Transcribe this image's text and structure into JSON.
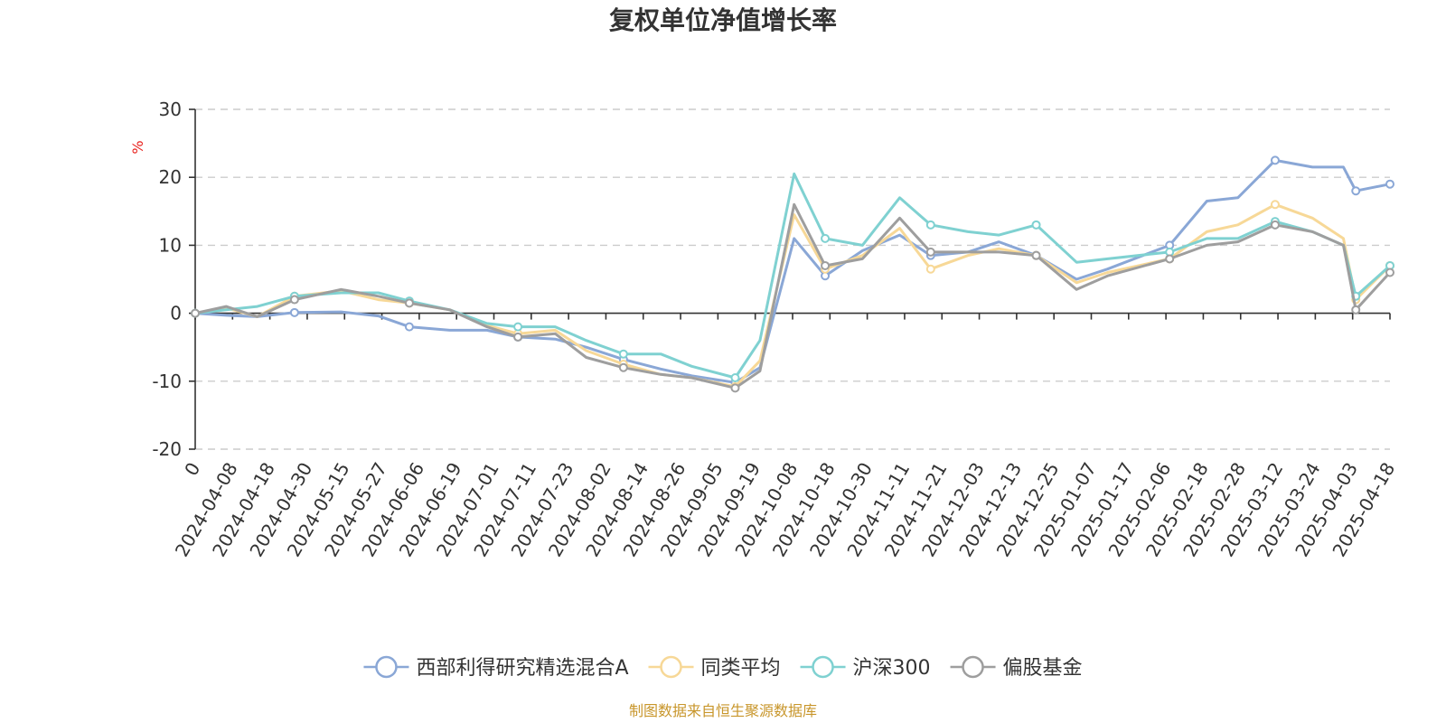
{
  "chart_data": {
    "type": "line",
    "title": "复权单位净值增长率",
    "ylabel": "%",
    "ylim": [
      -20,
      30
    ],
    "y_ticks": [
      -20,
      -10,
      0,
      10,
      20,
      30
    ],
    "grid": true,
    "legend_placement": "bottom",
    "x_ticks": [
      "0",
      "2024-04-08",
      "2024-04-18",
      "2024-04-30",
      "2024-05-15",
      "2024-05-27",
      "2024-06-06",
      "2024-06-19",
      "2024-07-01",
      "2024-07-11",
      "2024-07-23",
      "2024-08-02",
      "2024-08-14",
      "2024-08-26",
      "2024-09-05",
      "2024-09-19",
      "2024-10-08",
      "2024-10-18",
      "2024-10-30",
      "2024-11-11",
      "2024-11-21",
      "2024-12-03",
      "2024-12-13",
      "2024-12-25",
      "2025-01-07",
      "2025-01-17",
      "2025-02-06",
      "2025-02-18",
      "2025-02-28",
      "2025-03-12",
      "2025-03-24",
      "2025-04-03",
      "2025-04-18"
    ],
    "x_range": [
      "2024-03-29",
      "2025-04-18"
    ],
    "series": [
      {
        "name": "西部利得研究精选混合A",
        "color": "#8aa7d6",
        "points": [
          [
            "2024-03-29",
            0
          ],
          [
            "2024-04-08",
            -0.3
          ],
          [
            "2024-04-18",
            -0.5
          ],
          [
            "2024-04-30",
            0.1
          ],
          [
            "2024-05-15",
            0.2
          ],
          [
            "2024-05-27",
            -0.4
          ],
          [
            "2024-06-06",
            -2.0
          ],
          [
            "2024-06-19",
            -2.5
          ],
          [
            "2024-07-01",
            -2.5
          ],
          [
            "2024-07-11",
            -3.5
          ],
          [
            "2024-07-23",
            -3.8
          ],
          [
            "2024-08-02",
            -5.0
          ],
          [
            "2024-08-14",
            -6.8
          ],
          [
            "2024-08-26",
            -8.2
          ],
          [
            "2024-09-05",
            -9.2
          ],
          [
            "2024-09-19",
            -10.2
          ],
          [
            "2024-09-27",
            -8.0
          ],
          [
            "2024-10-08",
            11.0
          ],
          [
            "2024-10-18",
            5.5
          ],
          [
            "2024-10-30",
            9.2
          ],
          [
            "2024-11-11",
            11.5
          ],
          [
            "2024-11-21",
            8.5
          ],
          [
            "2024-12-03",
            9.0
          ],
          [
            "2024-12-13",
            10.5
          ],
          [
            "2024-12-25",
            8.5
          ],
          [
            "2025-01-07",
            5.0
          ],
          [
            "2025-01-17",
            6.5
          ],
          [
            "2025-02-06",
            10.0
          ],
          [
            "2025-02-18",
            16.5
          ],
          [
            "2025-02-28",
            17.0
          ],
          [
            "2025-03-12",
            22.5
          ],
          [
            "2025-03-24",
            21.5
          ],
          [
            "2025-04-03",
            21.5
          ],
          [
            "2025-04-07",
            18.0
          ],
          [
            "2025-04-18",
            19.0
          ]
        ]
      },
      {
        "name": "同类平均",
        "color": "#f7d897",
        "points": [
          [
            "2024-03-29",
            0
          ],
          [
            "2024-04-08",
            0.8
          ],
          [
            "2024-04-18",
            -0.5
          ],
          [
            "2024-04-30",
            2.5
          ],
          [
            "2024-05-15",
            3.3
          ],
          [
            "2024-05-27",
            2.0
          ],
          [
            "2024-06-06",
            1.5
          ],
          [
            "2024-06-19",
            0.5
          ],
          [
            "2024-07-01",
            -1.8
          ],
          [
            "2024-07-11",
            -3.0
          ],
          [
            "2024-07-23",
            -2.5
          ],
          [
            "2024-08-02",
            -5.5
          ],
          [
            "2024-08-14",
            -7.5
          ],
          [
            "2024-08-26",
            -9.0
          ],
          [
            "2024-09-05",
            -9.5
          ],
          [
            "2024-09-19",
            -10.8
          ],
          [
            "2024-09-27",
            -7.0
          ],
          [
            "2024-10-08",
            14.5
          ],
          [
            "2024-10-18",
            6.5
          ],
          [
            "2024-10-30",
            8.5
          ],
          [
            "2024-11-11",
            12.5
          ],
          [
            "2024-11-21",
            6.5
          ],
          [
            "2024-12-03",
            8.5
          ],
          [
            "2024-12-13",
            9.5
          ],
          [
            "2024-12-25",
            8.5
          ],
          [
            "2025-01-07",
            4.5
          ],
          [
            "2025-01-17",
            6.0
          ],
          [
            "2025-02-06",
            8.0
          ],
          [
            "2025-02-18",
            12.0
          ],
          [
            "2025-02-28",
            13.0
          ],
          [
            "2025-03-12",
            16.0
          ],
          [
            "2025-03-24",
            14.0
          ],
          [
            "2025-04-03",
            11.0
          ],
          [
            "2025-04-07",
            2.0
          ],
          [
            "2025-04-18",
            7.0
          ]
        ]
      },
      {
        "name": "沪深300",
        "color": "#7fd1d1",
        "points": [
          [
            "2024-03-29",
            0
          ],
          [
            "2024-04-08",
            0.5
          ],
          [
            "2024-04-18",
            1.0
          ],
          [
            "2024-04-30",
            2.5
          ],
          [
            "2024-05-15",
            3.0
          ],
          [
            "2024-05-27",
            3.0
          ],
          [
            "2024-06-06",
            1.8
          ],
          [
            "2024-06-19",
            0.5
          ],
          [
            "2024-07-01",
            -1.5
          ],
          [
            "2024-07-11",
            -2.0
          ],
          [
            "2024-07-23",
            -2.0
          ],
          [
            "2024-08-02",
            -4.0
          ],
          [
            "2024-08-14",
            -6.0
          ],
          [
            "2024-08-26",
            -6.0
          ],
          [
            "2024-09-05",
            -7.8
          ],
          [
            "2024-09-19",
            -9.5
          ],
          [
            "2024-09-27",
            -4.0
          ],
          [
            "2024-10-08",
            20.5
          ],
          [
            "2024-10-18",
            11.0
          ],
          [
            "2024-10-30",
            10.0
          ],
          [
            "2024-11-11",
            17.0
          ],
          [
            "2024-11-21",
            13.0
          ],
          [
            "2024-12-03",
            12.0
          ],
          [
            "2024-12-13",
            11.5
          ],
          [
            "2024-12-25",
            13.0
          ],
          [
            "2025-01-07",
            7.5
          ],
          [
            "2025-01-17",
            8.0
          ],
          [
            "2025-02-06",
            9.0
          ],
          [
            "2025-02-18",
            11.0
          ],
          [
            "2025-02-28",
            11.0
          ],
          [
            "2025-03-12",
            13.5
          ],
          [
            "2025-03-24",
            12.0
          ],
          [
            "2025-04-03",
            10.0
          ],
          [
            "2025-04-07",
            2.5
          ],
          [
            "2025-04-18",
            7.0
          ]
        ]
      },
      {
        "name": "偏股基金",
        "color": "#9e9e9e",
        "points": [
          [
            "2024-03-29",
            0
          ],
          [
            "2024-04-08",
            1.0
          ],
          [
            "2024-04-18",
            -0.5
          ],
          [
            "2024-04-30",
            2.0
          ],
          [
            "2024-05-15",
            3.5
          ],
          [
            "2024-05-27",
            2.5
          ],
          [
            "2024-06-06",
            1.5
          ],
          [
            "2024-06-19",
            0.5
          ],
          [
            "2024-07-01",
            -2.0
          ],
          [
            "2024-07-11",
            -3.5
          ],
          [
            "2024-07-23",
            -3.0
          ],
          [
            "2024-08-02",
            -6.5
          ],
          [
            "2024-08-14",
            -8.0
          ],
          [
            "2024-08-26",
            -9.0
          ],
          [
            "2024-09-05",
            -9.5
          ],
          [
            "2024-09-19",
            -11.0
          ],
          [
            "2024-09-27",
            -8.5
          ],
          [
            "2024-10-08",
            16.0
          ],
          [
            "2024-10-18",
            7.0
          ],
          [
            "2024-10-30",
            8.0
          ],
          [
            "2024-11-11",
            14.0
          ],
          [
            "2024-11-21",
            9.0
          ],
          [
            "2024-12-03",
            9.0
          ],
          [
            "2024-12-13",
            9.0
          ],
          [
            "2024-12-25",
            8.5
          ],
          [
            "2025-01-07",
            3.5
          ],
          [
            "2025-01-17",
            5.5
          ],
          [
            "2025-02-06",
            8.0
          ],
          [
            "2025-02-18",
            10.0
          ],
          [
            "2025-02-28",
            10.5
          ],
          [
            "2025-03-12",
            13.0
          ],
          [
            "2025-03-24",
            12.0
          ],
          [
            "2025-04-03",
            10.0
          ],
          [
            "2025-04-07",
            0.5
          ],
          [
            "2025-04-18",
            6.0
          ]
        ]
      }
    ]
  },
  "footer": {
    "source": "制图数据来自恒生聚源数据库"
  }
}
